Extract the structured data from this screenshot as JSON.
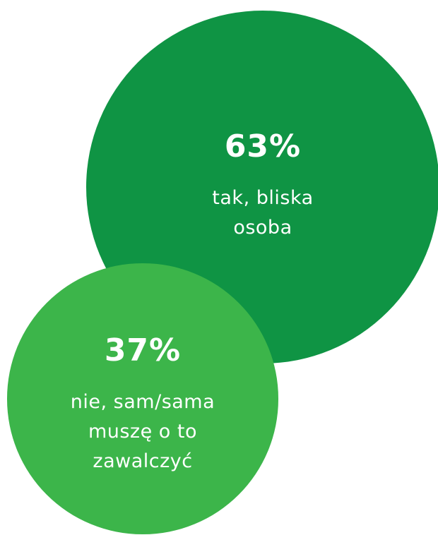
{
  "chart_data": {
    "type": "bubble",
    "categories": [
      "tak, bliska osoba",
      "nie, sam/sama muszę o to zawalczyć"
    ],
    "values": [
      63,
      37
    ],
    "value_labels": [
      "63%",
      "37%"
    ],
    "colors": [
      "#0f9444",
      "#3cb54a"
    ]
  }
}
